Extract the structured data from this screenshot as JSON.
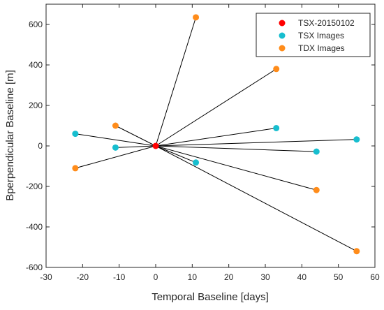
{
  "chart_data": {
    "type": "scatter",
    "title": "",
    "xlabel": "Temporal Baseline [days]",
    "ylabel": "Bperpendicular Baseline [m]",
    "xlim": [
      -30,
      60
    ],
    "ylim": [
      -600,
      700
    ],
    "xticks": [
      -30,
      -20,
      -10,
      0,
      10,
      20,
      30,
      40,
      50,
      60
    ],
    "yticks": [
      -600,
      -400,
      -200,
      0,
      200,
      400,
      600
    ],
    "grid": false,
    "legend_position": "top-right",
    "reference": {
      "x": 0,
      "y": 0
    },
    "series": [
      {
        "name": "TSX-20150102",
        "color": "#ff0000",
        "points": [
          {
            "x": 0,
            "y": 0
          }
        ]
      },
      {
        "name": "TSX Images",
        "color": "#17becf",
        "points": [
          {
            "x": -22,
            "y": 60
          },
          {
            "x": -11,
            "y": -8
          },
          {
            "x": 11,
            "y": -82
          },
          {
            "x": 33,
            "y": 88
          },
          {
            "x": 44,
            "y": -28
          },
          {
            "x": 55,
            "y": 32
          }
        ]
      },
      {
        "name": "TDX Images",
        "color": "#ff8c1a",
        "points": [
          {
            "x": -22,
            "y": -110
          },
          {
            "x": -11,
            "y": 100
          },
          {
            "x": 11,
            "y": 635
          },
          {
            "x": 33,
            "y": 380
          },
          {
            "x": 44,
            "y": -218
          },
          {
            "x": 55,
            "y": -520
          }
        ]
      }
    ]
  }
}
